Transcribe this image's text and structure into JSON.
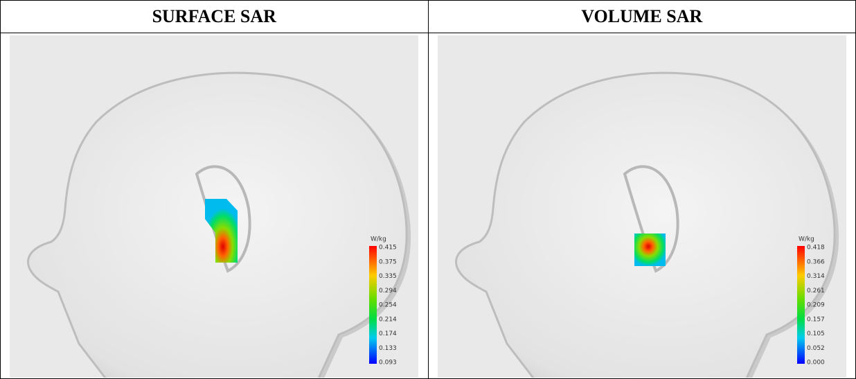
{
  "table": {
    "headers": [
      "SURFACE SAR",
      "VOLUME SAR"
    ],
    "panels": [
      {
        "unit": "W/kg",
        "scale": [
          "0.415",
          "0.375",
          "0.335",
          "0.294",
          "0.254",
          "0.214",
          "0.174",
          "0.133",
          "0.093"
        ]
      },
      {
        "unit": "W/kg",
        "scale": [
          "0.418",
          "0.366",
          "0.314",
          "0.261",
          "0.209",
          "0.157",
          "0.105",
          "0.052",
          "0.000"
        ]
      }
    ]
  }
}
